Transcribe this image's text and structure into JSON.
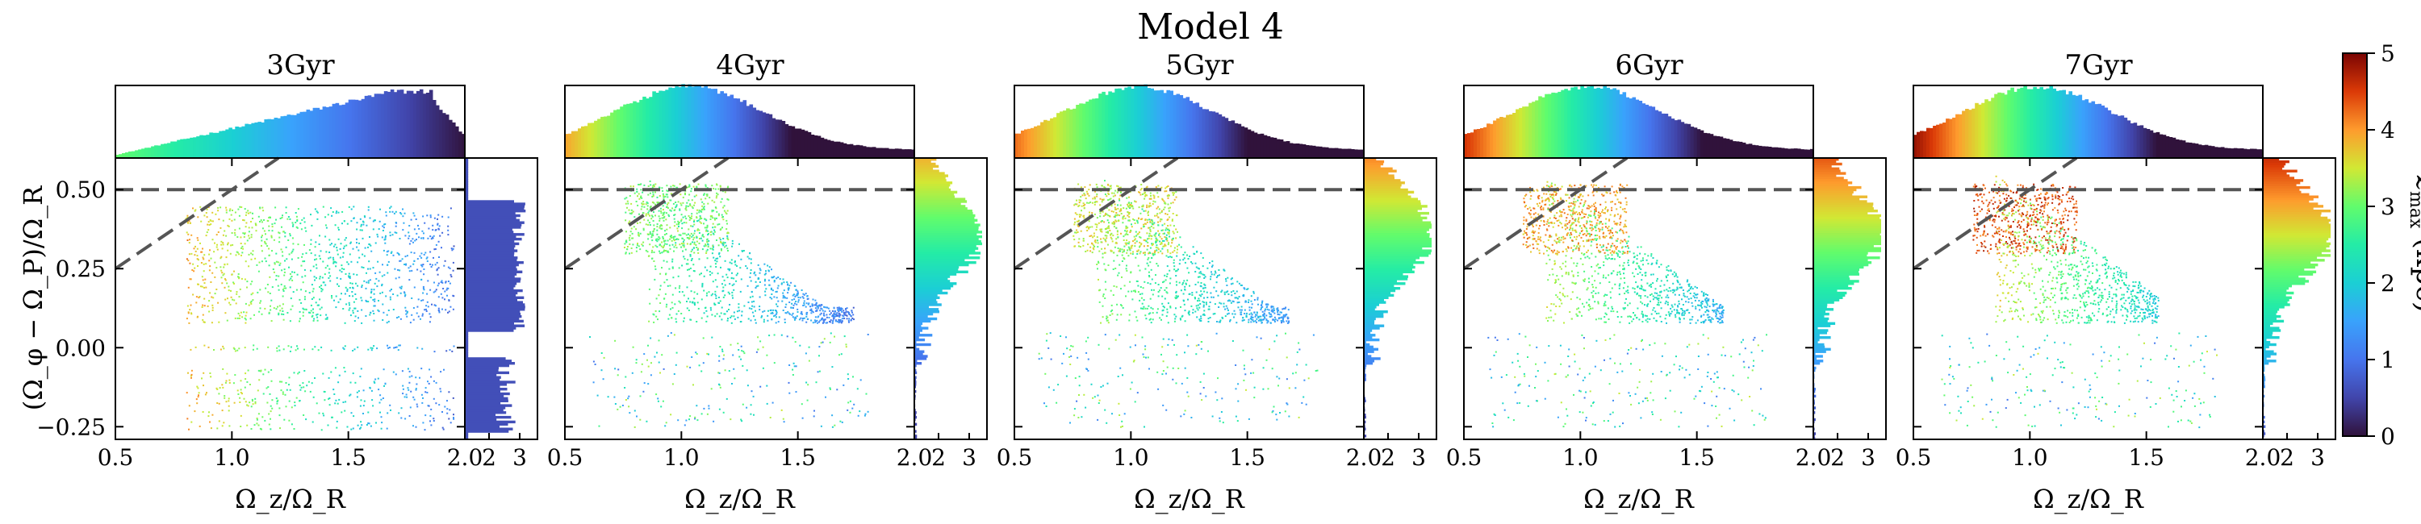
{
  "chart_data": {
    "type": "scatter",
    "title": "Model 4",
    "panels": [
      {
        "label": "3Gyr",
        "age_gyr": 3
      },
      {
        "label": "4Gyr",
        "age_gyr": 4
      },
      {
        "label": "5Gyr",
        "age_gyr": 5
      },
      {
        "label": "6Gyr",
        "age_gyr": 6
      },
      {
        "label": "7Gyr",
        "age_gyr": 7
      }
    ],
    "xlabel": "Ω_z/Ω_R",
    "ylabel": "(Ω_φ − Ω_P)/Ω_R",
    "xlim": [
      0.5,
      2.0
    ],
    "ylim": [
      -0.29,
      0.6
    ],
    "x_ticks": [
      "0.5",
      "1.0",
      "1.5",
      "2.0"
    ],
    "y_ticks": [
      "0.50",
      "0.25",
      "0.00",
      "−0.25"
    ],
    "x_tick_values": [
      0.5,
      1.0,
      1.5,
      2.0
    ],
    "y_tick_values": [
      0.5,
      0.25,
      0.0,
      -0.25
    ],
    "right_hist_ticks": [
      "2",
      "3"
    ],
    "reference_lines": [
      {
        "style": "dashed",
        "description": "horizontal resonance line",
        "y": 0.5
      },
      {
        "style": "dashed",
        "description": "diagonal resonance line",
        "slope": 0.5,
        "intercept": 0.0
      }
    ],
    "colorbar": {
      "label": "z_max (kpc)",
      "range": [
        0,
        5
      ],
      "ticks": [
        "0",
        "1",
        "2",
        "3",
        "4",
        "5"
      ],
      "colormap": "turbo"
    },
    "marginals": "top histogram of Ω_z/Ω_R and right histogram of (Ω_φ − Ω_P)/Ω_R, colored by mean z_max"
  }
}
